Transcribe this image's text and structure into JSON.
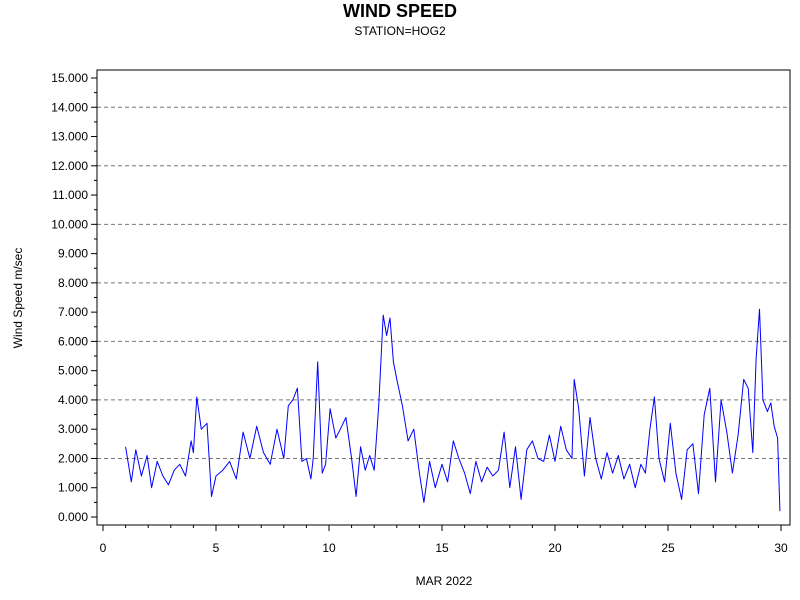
{
  "chart_data": {
    "type": "line",
    "title": "WIND SPEED",
    "subtitle": "STATION=HOG2",
    "xlabel": "MAR 2022",
    "ylabel": "Wind Speed m/sec",
    "xlim": [
      0,
      30
    ],
    "ylim": [
      0,
      15
    ],
    "x_ticks": [
      0,
      5,
      10,
      15,
      20,
      25,
      30
    ],
    "x_tick_labels": [
      "0",
      "5",
      "10",
      "15",
      "20",
      "25",
      "30"
    ],
    "y_ticks": [
      0,
      1,
      2,
      3,
      4,
      5,
      6,
      7,
      8,
      9,
      10,
      11,
      12,
      13,
      14,
      15
    ],
    "y_tick_labels": [
      "0.000",
      "1.000",
      "2.000",
      "3.000",
      "4.000",
      "5.000",
      "6.000",
      "7.000",
      "8.000",
      "9.000",
      "10.000",
      "11.000",
      "12.000",
      "13.000",
      "14.000",
      "15.000"
    ],
    "gridlines_y": [
      2,
      4,
      6,
      8,
      10,
      12,
      14
    ],
    "grid": "dashed horizontal at even values",
    "line_color": "#0000ff",
    "series": [
      {
        "x": [
          1.0,
          1.25,
          1.45,
          1.7,
          1.95,
          2.15,
          2.4,
          2.65,
          2.9,
          3.15,
          3.4,
          3.65,
          3.9,
          4.0,
          4.15,
          4.35,
          4.6,
          4.8,
          5.0,
          5.3,
          5.6,
          5.9,
          6.2,
          6.5,
          6.8,
          7.1,
          7.4,
          7.7,
          8.0,
          8.2,
          8.4,
          8.6,
          8.8,
          9.0,
          9.2,
          9.3,
          9.5,
          9.7,
          9.85,
          10.05,
          10.3,
          10.5,
          10.75,
          11.0,
          11.2,
          11.4,
          11.6,
          11.8,
          12.0,
          12.2,
          12.4,
          12.55,
          12.7,
          12.85,
          13.0,
          13.25,
          13.5,
          13.75,
          14.0,
          14.2,
          14.45,
          14.7,
          15.0,
          15.25,
          15.5,
          15.75,
          16.0,
          16.25,
          16.5,
          16.75,
          17.0,
          17.25,
          17.5,
          17.75,
          18.0,
          18.25,
          18.5,
          18.75,
          19.0,
          19.25,
          19.5,
          19.75,
          20.0,
          20.25,
          20.5,
          20.75,
          20.85,
          21.05,
          21.3,
          21.55,
          21.8,
          22.05,
          22.3,
          22.55,
          22.8,
          23.05,
          23.3,
          23.55,
          23.8,
          24.0,
          24.2,
          24.4,
          24.6,
          24.85,
          25.1,
          25.35,
          25.6,
          25.85,
          26.1,
          26.35,
          26.6,
          26.85,
          27.1,
          27.35,
          27.6,
          27.85,
          28.1,
          28.35,
          28.55,
          28.75,
          28.9,
          29.05,
          29.2,
          29.4,
          29.55,
          29.7,
          29.85,
          29.95
        ],
        "y": [
          2.4,
          1.2,
          2.3,
          1.4,
          2.1,
          1.0,
          1.9,
          1.4,
          1.1,
          1.6,
          1.8,
          1.4,
          2.6,
          2.2,
          4.1,
          3.0,
          3.2,
          0.7,
          1.4,
          1.6,
          1.9,
          1.3,
          2.9,
          2.0,
          3.1,
          2.2,
          1.8,
          3.0,
          2.0,
          3.8,
          4.0,
          4.4,
          1.9,
          2.0,
          1.3,
          2.0,
          5.3,
          1.5,
          1.8,
          3.7,
          2.7,
          3.0,
          3.4,
          2.0,
          0.7,
          2.4,
          1.6,
          2.1,
          1.6,
          3.8,
          6.9,
          6.2,
          6.8,
          5.3,
          4.7,
          3.8,
          2.6,
          3.0,
          1.5,
          0.5,
          1.9,
          1.0,
          1.8,
          1.2,
          2.6,
          2.0,
          1.5,
          0.8,
          1.9,
          1.2,
          1.7,
          1.4,
          1.6,
          2.9,
          1.0,
          2.4,
          0.6,
          2.3,
          2.6,
          2.0,
          1.9,
          2.8,
          1.9,
          3.1,
          2.3,
          2.0,
          4.7,
          3.7,
          1.4,
          3.4,
          2.0,
          1.3,
          2.2,
          1.5,
          2.1,
          1.3,
          1.8,
          1.0,
          1.8,
          1.5,
          3.0,
          4.1,
          2.0,
          1.2,
          3.2,
          1.5,
          0.6,
          2.3,
          2.5,
          0.8,
          3.5,
          4.4,
          1.2,
          4.0,
          2.9,
          1.5,
          2.8,
          4.7,
          4.4,
          2.2,
          5.4,
          7.1,
          4.0,
          3.6,
          3.9,
          3.1,
          2.7,
          0.2
        ]
      }
    ]
  }
}
